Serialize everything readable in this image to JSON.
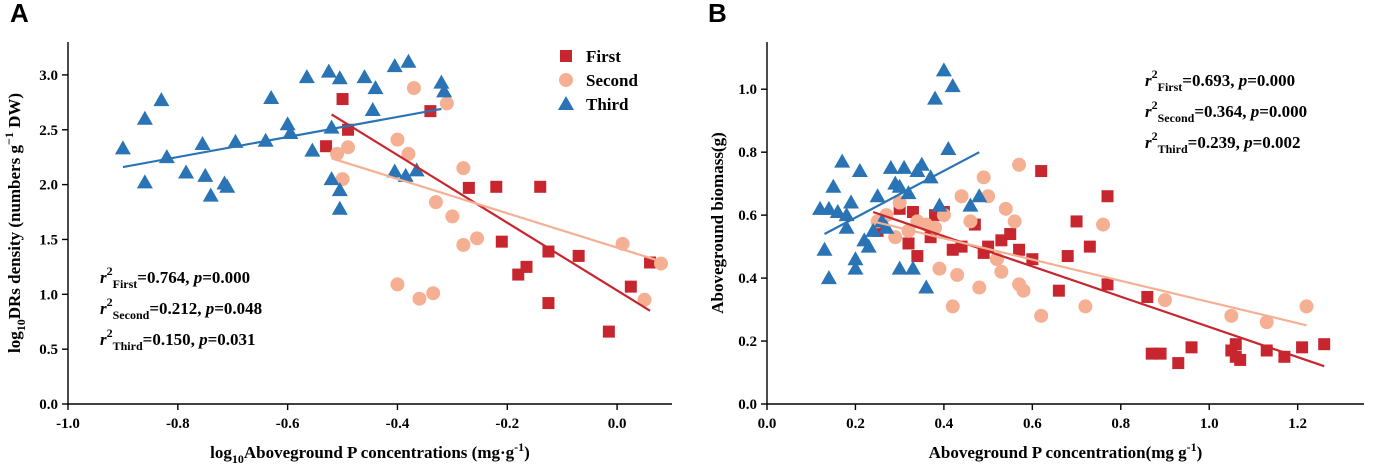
{
  "colors": {
    "first": "#c8262f",
    "second": "#f5b093",
    "third": "#2a73b5"
  },
  "chart_data": [
    {
      "panel": "A",
      "type": "scatter",
      "xlabel": "log10Aboveground P concentrations (mg·g-1)",
      "xlabel_parts": {
        "pre": "log",
        "sub": "10",
        "main": "Aboveground P concentrations (mg·g",
        "sup": "-1",
        "post": ")"
      },
      "ylabel": "log10DRs density (numbers g-1 DW)",
      "ylabel_parts": {
        "pre": "log",
        "sub": "10",
        "main": "DRs density (numbers g",
        "sup": "−1",
        "post": " DW)"
      },
      "xlim": [
        -1.0,
        0.1
      ],
      "ylim": [
        0.0,
        3.3
      ],
      "x_ticks": [
        -1.0,
        -0.8,
        -0.6,
        -0.4,
        -0.2,
        0.0
      ],
      "x_tick_labels": [
        "-1.0",
        "-0.8",
        "-0.6",
        "-0.4",
        "-0.2",
        "0.0"
      ],
      "y_ticks": [
        0.0,
        0.5,
        1.0,
        1.5,
        2.0,
        2.5,
        3.0
      ],
      "y_tick_labels": [
        "0.0",
        "0.5",
        "1.0",
        "1.5",
        "2.0",
        "2.5",
        "3.0"
      ],
      "legend": [
        "First",
        "Second",
        "Third"
      ],
      "stats": [
        {
          "r": "r",
          "sup": "2",
          "sub": "First",
          "val": "=0.764, ",
          "p": "p",
          "pval": "=0.000"
        },
        {
          "r": "r",
          "sup": "2",
          "sub": "Second",
          "val": "=0.212, ",
          "p": "p",
          "pval": "=0.048"
        },
        {
          "r": "r",
          "sup": "2",
          "sub": "Third",
          "val": "=0.150, ",
          "p": "p",
          "pval": "=0.031"
        }
      ],
      "series": [
        {
          "name": "First",
          "marker": "square",
          "points": [
            [
              -0.53,
              2.35
            ],
            [
              -0.5,
              2.78
            ],
            [
              -0.49,
              2.5
            ],
            [
              -0.34,
              2.67
            ],
            [
              -0.27,
              1.97
            ],
            [
              -0.22,
              1.98
            ],
            [
              -0.21,
              1.48
            ],
            [
              -0.18,
              1.18
            ],
            [
              -0.165,
              1.25
            ],
            [
              -0.14,
              1.98
            ],
            [
              -0.125,
              1.39
            ],
            [
              -0.125,
              0.92
            ],
            [
              -0.07,
              1.35
            ],
            [
              -0.015,
              0.66
            ],
            [
              0.025,
              1.07
            ],
            [
              0.06,
              1.29
            ]
          ],
          "fit": [
            [
              -0.52,
              2.64
            ],
            [
              0.06,
              0.85
            ]
          ]
        },
        {
          "name": "Second",
          "marker": "circle",
          "points": [
            [
              -0.51,
              2.28
            ],
            [
              -0.49,
              2.34
            ],
            [
              -0.5,
              2.05
            ],
            [
              -0.4,
              2.41
            ],
            [
              -0.38,
              2.28
            ],
            [
              -0.37,
              2.88
            ],
            [
              -0.31,
              2.74
            ],
            [
              -0.28,
              2.15
            ],
            [
              -0.33,
              1.84
            ],
            [
              -0.3,
              1.71
            ],
            [
              -0.28,
              1.45
            ],
            [
              -0.255,
              1.51
            ],
            [
              -0.4,
              1.09
            ],
            [
              -0.36,
              0.96
            ],
            [
              -0.335,
              1.01
            ],
            [
              0.01,
              1.46
            ],
            [
              0.05,
              0.95
            ],
            [
              0.08,
              1.28
            ]
          ],
          "fit": [
            [
              -0.52,
              2.24
            ],
            [
              0.08,
              1.3
            ]
          ]
        },
        {
          "name": "Third",
          "marker": "triangle",
          "points": [
            [
              -0.9,
              2.33
            ],
            [
              -0.86,
              2.6
            ],
            [
              -0.86,
              2.02
            ],
            [
              -0.83,
              2.77
            ],
            [
              -0.82,
              2.25
            ],
            [
              -0.785,
              2.11
            ],
            [
              -0.755,
              2.37
            ],
            [
              -0.75,
              2.08
            ],
            [
              -0.74,
              1.9
            ],
            [
              -0.715,
              2.01
            ],
            [
              -0.71,
              1.98
            ],
            [
              -0.695,
              2.39
            ],
            [
              -0.64,
              2.4
            ],
            [
              -0.63,
              2.79
            ],
            [
              -0.6,
              2.55
            ],
            [
              -0.595,
              2.47
            ],
            [
              -0.565,
              2.98
            ],
            [
              -0.555,
              2.31
            ],
            [
              -0.525,
              3.03
            ],
            [
              -0.52,
              2.52
            ],
            [
              -0.52,
              2.05
            ],
            [
              -0.505,
              2.97
            ],
            [
              -0.505,
              1.95
            ],
            [
              -0.505,
              1.78
            ],
            [
              -0.46,
              2.98
            ],
            [
              -0.445,
              2.68
            ],
            [
              -0.44,
              2.88
            ],
            [
              -0.405,
              3.08
            ],
            [
              -0.405,
              2.12
            ],
            [
              -0.385,
              2.08
            ],
            [
              -0.38,
              3.12
            ],
            [
              -0.365,
              2.13
            ],
            [
              -0.32,
              2.93
            ],
            [
              -0.315,
              2.85
            ]
          ],
          "fit": [
            [
              -0.9,
              2.16
            ],
            [
              -0.32,
              2.69
            ]
          ]
        }
      ]
    },
    {
      "panel": "B",
      "type": "scatter",
      "xlabel": "Aboveground P concentration(mg g-1)",
      "xlabel_parts": {
        "pre": "",
        "sub": "",
        "main": "Aboveground P concentration(mg g",
        "sup": "-1",
        "post": ")"
      },
      "ylabel": "Aboveground biomass(g)",
      "ylabel_parts": {
        "pre": "",
        "sub": "",
        "main": "Aboveground biomass(g)",
        "sup": "",
        "post": ""
      },
      "xlim": [
        0.0,
        1.35
      ],
      "ylim": [
        0.0,
        1.15
      ],
      "x_ticks": [
        0.0,
        0.2,
        0.4,
        0.6,
        0.8,
        1.0,
        1.2
      ],
      "x_tick_labels": [
        "0.0",
        "0.2",
        "0.4",
        "0.6",
        "0.8",
        "1.0",
        "1.2"
      ],
      "y_ticks": [
        0.0,
        0.2,
        0.4,
        0.6,
        0.8,
        1.0
      ],
      "y_tick_labels": [
        "0.0",
        "0.2",
        "0.4",
        "0.6",
        "0.8",
        "1.0"
      ],
      "legend": [],
      "stats": [
        {
          "r": "r",
          "sup": "2",
          "sub": "First",
          "val": "=0.693, ",
          "p": "p",
          "pval": "=0.000"
        },
        {
          "r": "r",
          "sup": "2",
          "sub": "Second",
          "val": "=0.364, ",
          "p": "p",
          "pval": "=0.000"
        },
        {
          "r": "r",
          "sup": "2",
          "sub": "Third",
          "val": "=0.239, ",
          "p": "p",
          "pval": "=0.002"
        }
      ],
      "series": [
        {
          "name": "First",
          "marker": "square",
          "points": [
            [
              0.25,
              0.55
            ],
            [
              0.3,
              0.62
            ],
            [
              0.32,
              0.51
            ],
            [
              0.33,
              0.61
            ],
            [
              0.34,
              0.47
            ],
            [
              0.37,
              0.53
            ],
            [
              0.38,
              0.6
            ],
            [
              0.4,
              0.61
            ],
            [
              0.42,
              0.49
            ],
            [
              0.44,
              0.5
            ],
            [
              0.47,
              0.57
            ],
            [
              0.49,
              0.48
            ],
            [
              0.5,
              0.5
            ],
            [
              0.53,
              0.52
            ],
            [
              0.55,
              0.54
            ],
            [
              0.57,
              0.49
            ],
            [
              0.6,
              0.46
            ],
            [
              0.62,
              0.74
            ],
            [
              0.66,
              0.36
            ],
            [
              0.68,
              0.47
            ],
            [
              0.7,
              0.58
            ],
            [
              0.73,
              0.5
            ],
            [
              0.77,
              0.66
            ],
            [
              0.77,
              0.38
            ],
            [
              0.86,
              0.34
            ],
            [
              0.87,
              0.16
            ],
            [
              0.89,
              0.16
            ],
            [
              0.93,
              0.13
            ],
            [
              0.96,
              0.18
            ],
            [
              1.05,
              0.17
            ],
            [
              1.06,
              0.19
            ],
            [
              1.06,
              0.15
            ],
            [
              1.07,
              0.14
            ],
            [
              1.13,
              0.17
            ],
            [
              1.17,
              0.15
            ],
            [
              1.21,
              0.18
            ],
            [
              1.26,
              0.19
            ]
          ],
          "fit": [
            [
              0.24,
              0.61
            ],
            [
              1.26,
              0.12
            ]
          ]
        },
        {
          "name": "Second",
          "marker": "circle",
          "points": [
            [
              0.25,
              0.58
            ],
            [
              0.27,
              0.6
            ],
            [
              0.29,
              0.53
            ],
            [
              0.3,
              0.64
            ],
            [
              0.32,
              0.55
            ],
            [
              0.34,
              0.58
            ],
            [
              0.36,
              0.57
            ],
            [
              0.38,
              0.56
            ],
            [
              0.39,
              0.43
            ],
            [
              0.4,
              0.6
            ],
            [
              0.42,
              0.31
            ],
            [
              0.43,
              0.41
            ],
            [
              0.44,
              0.66
            ],
            [
              0.46,
              0.58
            ],
            [
              0.48,
              0.37
            ],
            [
              0.49,
              0.72
            ],
            [
              0.5,
              0.66
            ],
            [
              0.52,
              0.46
            ],
            [
              0.53,
              0.42
            ],
            [
              0.54,
              0.62
            ],
            [
              0.56,
              0.58
            ],
            [
              0.57,
              0.38
            ],
            [
              0.57,
              0.76
            ],
            [
              0.58,
              0.36
            ],
            [
              0.62,
              0.28
            ],
            [
              0.72,
              0.31
            ],
            [
              0.76,
              0.57
            ],
            [
              0.9,
              0.33
            ],
            [
              1.05,
              0.28
            ],
            [
              1.13,
              0.26
            ],
            [
              1.22,
              0.31
            ]
          ],
          "fit": [
            [
              0.24,
              0.58
            ],
            [
              1.22,
              0.25
            ]
          ]
        },
        {
          "name": "Third",
          "marker": "triangle",
          "points": [
            [
              0.12,
              0.62
            ],
            [
              0.13,
              0.49
            ],
            [
              0.14,
              0.4
            ],
            [
              0.14,
              0.62
            ],
            [
              0.15,
              0.69
            ],
            [
              0.16,
              0.61
            ],
            [
              0.17,
              0.77
            ],
            [
              0.18,
              0.56
            ],
            [
              0.18,
              0.6
            ],
            [
              0.19,
              0.64
            ],
            [
              0.2,
              0.46
            ],
            [
              0.2,
              0.43
            ],
            [
              0.21,
              0.74
            ],
            [
              0.22,
              0.52
            ],
            [
              0.23,
              0.5
            ],
            [
              0.24,
              0.55
            ],
            [
              0.25,
              0.66
            ],
            [
              0.26,
              0.58
            ],
            [
              0.27,
              0.56
            ],
            [
              0.28,
              0.75
            ],
            [
              0.29,
              0.7
            ],
            [
              0.3,
              0.69
            ],
            [
              0.31,
              0.75
            ],
            [
              0.32,
              0.67
            ],
            [
              0.33,
              0.43
            ],
            [
              0.34,
              0.74
            ],
            [
              0.35,
              0.76
            ],
            [
              0.36,
              0.37
            ],
            [
              0.37,
              0.72
            ],
            [
              0.38,
              0.97
            ],
            [
              0.39,
              0.63
            ],
            [
              0.4,
              1.06
            ],
            [
              0.41,
              0.81
            ],
            [
              0.42,
              1.01
            ],
            [
              0.46,
              0.63
            ],
            [
              0.48,
              0.66
            ],
            [
              0.3,
              0.43
            ]
          ],
          "fit": [
            [
              0.13,
              0.54
            ],
            [
              0.48,
              0.8
            ]
          ]
        }
      ]
    }
  ],
  "panels": [
    {
      "letter": "A"
    },
    {
      "letter": "B"
    }
  ]
}
